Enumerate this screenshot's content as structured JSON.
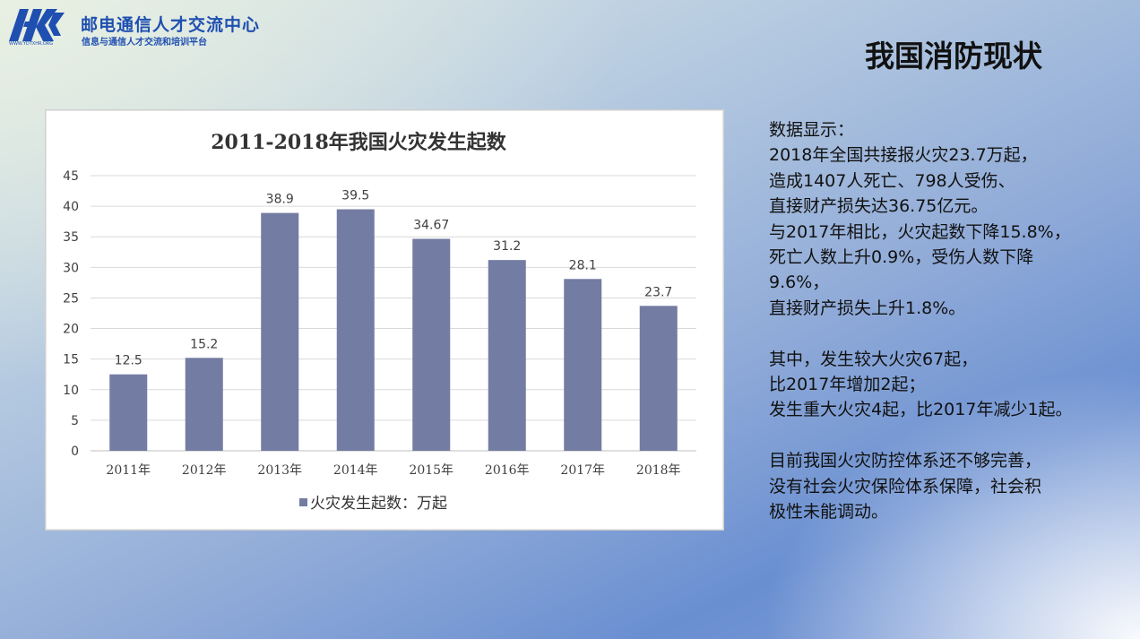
{
  "header": {
    "logo_text": "邮电通信人才交流中心",
    "logo_subtext": "信息与通信人才交流和培训平台",
    "logo_url_text": "WWW.YDTXHR.ORG",
    "page_title": "我国消防现状"
  },
  "colors": {
    "bar": "#737ca2",
    "logo": "#1f4fb0",
    "grid": "#d9d9d9"
  },
  "chart_data": {
    "type": "bar",
    "title": "2011-2018年我国火灾发生起数",
    "categories": [
      "2011年",
      "2012年",
      "2013年",
      "2014年",
      "2015年",
      "2016年",
      "2017年",
      "2018年"
    ],
    "series": [
      {
        "name": "火灾发生起数：万起",
        "values": [
          12.5,
          15.2,
          38.9,
          39.5,
          34.67,
          31.2,
          28.1,
          23.7
        ]
      }
    ],
    "value_labels": [
      "12.5",
      "15.2",
      "38.9",
      "39.5",
      "34.67",
      "31.2",
      "28.1",
      "23.7"
    ],
    "ylim": [
      0,
      45
    ],
    "yticks": [
      0,
      5,
      10,
      15,
      20,
      25,
      30,
      35,
      40,
      45
    ],
    "grid": true,
    "legend": "bottom"
  },
  "description": {
    "lines": [
      "数据显示：",
      "2018年全国共接报火灾23.7万起，",
      "造成1407人死亡、798人受伤、",
      "直接财产损失达36.75亿元。",
      "与2017年相比，火灾起数下降15.8%，",
      "死亡人数上升0.9%，受伤人数下降",
      "9.6%，",
      "直接财产损失上升1.8%。",
      "",
      "其中，发生较大火灾67起，",
      "比2017年增加2起；",
      "发生重大火灾4起，比2017年减少1起。",
      "",
      "目前我国火灾防控体系还不够完善，",
      "没有社会火灾保险体系保障，社会积",
      "极性未能调动。"
    ]
  }
}
